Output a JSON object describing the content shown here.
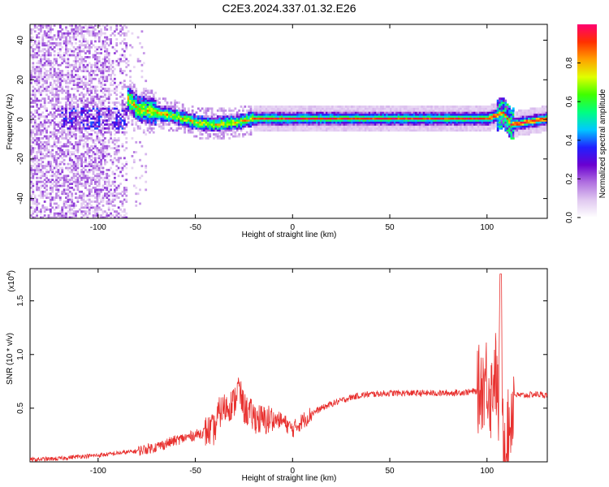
{
  "title": "C2E3.2024.337.01.32.E26",
  "colors": {
    "snr_line": "#e8302e",
    "colormap": [
      "#ffffff",
      "#e0c8f0",
      "#b070e0",
      "#6a00d0",
      "#2020ff",
      "#00c8ff",
      "#00ff80",
      "#40ff00",
      "#e0ff00",
      "#ffa000",
      "#ff3000",
      "#ff0070"
    ]
  },
  "chart_data": [
    {
      "type": "heatmap",
      "xlabel": "Height of straight line (km)",
      "ylabel": "Frequency (Hz)",
      "xlim": [
        -135,
        131
      ],
      "ylim": [
        -50,
        48
      ],
      "xticks": [
        -100,
        -50,
        0,
        50,
        100
      ],
      "yticks": [
        -40,
        -20,
        0,
        20,
        40
      ],
      "colorbar": {
        "label": "Normalized spectral amplitude",
        "range": [
          0.0,
          1.0
        ],
        "ticks": [
          0.0,
          0.2,
          0.4,
          0.6,
          0.8
        ]
      },
      "ridge": [
        [
          -85,
          10
        ],
        [
          -80,
          5
        ],
        [
          -70,
          3
        ],
        [
          -60,
          1
        ],
        [
          -50,
          -2
        ],
        [
          -40,
          -3
        ],
        [
          -30,
          -2
        ],
        [
          -20,
          0
        ],
        [
          0,
          0
        ],
        [
          50,
          0
        ],
        [
          100,
          0
        ],
        [
          108,
          3
        ],
        [
          112,
          -3
        ],
        [
          131,
          0
        ]
      ]
    },
    {
      "type": "line",
      "xlabel": "Height of straight line (km)",
      "ylabel": "SNR (10 * v/v)",
      "y_multiplier": "(x10",
      "y_multiplier_exp": "4",
      "y_multiplier_close": ")",
      "xlim": [
        -135,
        131
      ],
      "ylim": [
        0,
        1.8
      ],
      "xticks": [
        -100,
        -50,
        0,
        50,
        100
      ],
      "yticks": [
        0.5,
        1.0,
        1.5
      ],
      "ytick_labels": [
        "0.5",
        "1.0",
        "1.5"
      ],
      "series": [
        {
          "x": [
            -135,
            -120,
            -110,
            -100,
            -90,
            -80,
            -70,
            -60,
            -50,
            -45,
            -40,
            -38,
            -35,
            -30,
            -28,
            -25,
            -22,
            -20,
            -15,
            -10,
            -5,
            0,
            5,
            10,
            15,
            20,
            25,
            30,
            35,
            40,
            50,
            60,
            70,
            80,
            90,
            95,
            98,
            100,
            102,
            104,
            106,
            107,
            108,
            110,
            112,
            114,
            116,
            120,
            125,
            131
          ],
          "y": [
            0.02,
            0.03,
            0.05,
            0.06,
            0.08,
            0.1,
            0.14,
            0.2,
            0.25,
            0.28,
            0.3,
            0.45,
            0.5,
            0.55,
            0.7,
            0.5,
            0.45,
            0.42,
            0.38,
            0.4,
            0.38,
            0.3,
            0.38,
            0.45,
            0.5,
            0.54,
            0.57,
            0.6,
            0.62,
            0.63,
            0.64,
            0.64,
            0.64,
            0.64,
            0.65,
            0.66,
            0.72,
            0.8,
            0.6,
            0.9,
            0.5,
            1.7,
            0.3,
            0.15,
            0.4,
            0.63,
            0.62,
            0.62,
            0.63,
            0.62
          ]
        }
      ]
    }
  ]
}
